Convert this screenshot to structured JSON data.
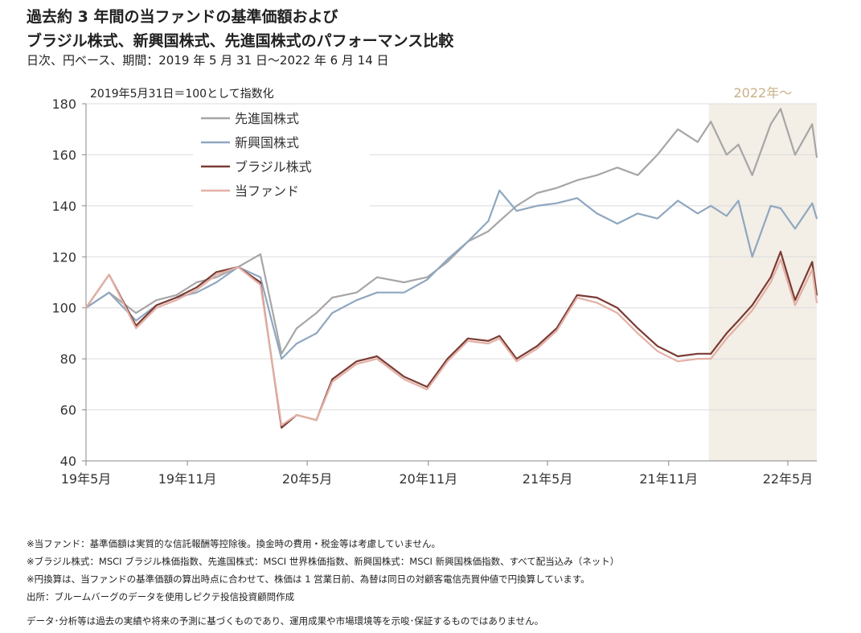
{
  "title_line1": "過去約 3 年間の当ファンドの基準価額および",
  "title_line2": "ブラジル株式、新興国株式、先進国株式のパフォーマンス比較",
  "subtitle": "日次、円ベース、期間：2019 年 5 月 31 日～2022 年 6 月 14 日",
  "index_note": "2019年5月31日＝100として指数化",
  "footnotes": [
    "※当ファンド：基準価額は実質的な信託報酬等控除後。換金時の費用・税金等は考慮していません。",
    "※ブラジル株式：MSCI ブラジル株価指数、先進国株式：MSCI 世界株価指数、新興国株式：MSCI 新興国株価指数、すべて配当込み（ネット）",
    "※円換算は、当ファンドの基準価額の算出時点に合わせて、株価は 1 営業日前、為替は同日の対顧客電信売買仲値で円換算しています。",
    "出所：ブルームバーグのデータを使用しピクテ投信投資顧問作成"
  ],
  "disclaimer": "データ･分析等は過去の実績や将来の予測に基づくものであり、運用成果や市場環境等を示唆･保証するものではありません。",
  "chart_data": {
    "type": "line",
    "ylim": [
      40,
      180
    ],
    "yticks": [
      "40",
      "60",
      "80",
      "100",
      "120",
      "140",
      "160",
      "180"
    ],
    "xlim": [
      "2019-05-31",
      "2022-06-14"
    ],
    "xticks": [
      {
        "date": "2019-05-31",
        "label": "19年5月"
      },
      {
        "date": "2019-11-01",
        "label": "19年11月"
      },
      {
        "date": "2020-05-01",
        "label": "20年5月"
      },
      {
        "date": "2020-11-01",
        "label": "20年11月"
      },
      {
        "date": "2021-05-01",
        "label": "21年5月"
      },
      {
        "date": "2021-11-01",
        "label": "21年11月"
      },
      {
        "date": "2022-05-01",
        "label": "22年5月"
      }
    ],
    "grid": true,
    "legend_position": "top-left",
    "highlight": {
      "from": "2022-01-01",
      "to": "2022-06-14",
      "label": "2022年～",
      "color": "#f3eee6",
      "label_color": "#c9b088"
    },
    "x": [
      "2019-05-31",
      "2019-07-05",
      "2019-08-15",
      "2019-09-15",
      "2019-10-15",
      "2019-11-15",
      "2019-12-15",
      "2020-01-17",
      "2020-02-20",
      "2020-03-23",
      "2020-04-15",
      "2020-05-15",
      "2020-06-08",
      "2020-07-15",
      "2020-08-15",
      "2020-09-25",
      "2020-10-30",
      "2020-11-30",
      "2020-12-31",
      "2021-01-31",
      "2021-02-17",
      "2021-03-15",
      "2021-04-15",
      "2021-05-15",
      "2021-06-15",
      "2021-07-15",
      "2021-08-15",
      "2021-09-15",
      "2021-10-15",
      "2021-11-15",
      "2021-12-15",
      "2022-01-04",
      "2022-01-28",
      "2022-02-15",
      "2022-03-08",
      "2022-04-05",
      "2022-04-20",
      "2022-05-12",
      "2022-06-07",
      "2022-06-14"
    ],
    "series": [
      {
        "name": "先進国株式",
        "color": "#a6a6a6",
        "values": [
          100,
          106,
          98,
          103,
          105,
          110,
          112,
          116,
          121,
          82,
          92,
          98,
          104,
          106,
          112,
          110,
          112,
          118,
          126,
          130,
          134,
          140,
          145,
          147,
          150,
          152,
          155,
          152,
          160,
          170,
          165,
          173,
          160,
          164,
          152,
          172,
          178,
          160,
          172,
          159
        ]
      },
      {
        "name": "新興国株式",
        "color": "#8fa7c0",
        "values": [
          100,
          106,
          95,
          101,
          104,
          106,
          110,
          116,
          112,
          80,
          86,
          90,
          98,
          103,
          106,
          106,
          111,
          119,
          126,
          134,
          146,
          138,
          140,
          141,
          143,
          137,
          133,
          137,
          135,
          142,
          137,
          140,
          136,
          142,
          120,
          140,
          139,
          131,
          141,
          135
        ]
      },
      {
        "name": "ブラジル株式",
        "color": "#7a3b33",
        "values": [
          100,
          113,
          93,
          101,
          104,
          108,
          114,
          116,
          110,
          53,
          58,
          56,
          72,
          79,
          81,
          73,
          69,
          80,
          88,
          87,
          89,
          80,
          85,
          92,
          105,
          104,
          100,
          92,
          85,
          81,
          82,
          82,
          90,
          95,
          101,
          112,
          122,
          103,
          118,
          105
        ]
      },
      {
        "name": "当ファンド",
        "color": "#e3b0a5",
        "values": [
          100,
          113,
          92,
          100,
          103,
          107,
          113,
          116,
          109,
          54,
          58,
          56,
          71,
          78,
          80,
          72,
          68,
          79,
          87,
          86,
          88,
          79,
          84,
          91,
          104,
          102,
          98,
          90,
          83,
          79,
          80,
          80,
          88,
          93,
          99,
          110,
          119,
          101,
          115,
          102
        ]
      }
    ]
  }
}
